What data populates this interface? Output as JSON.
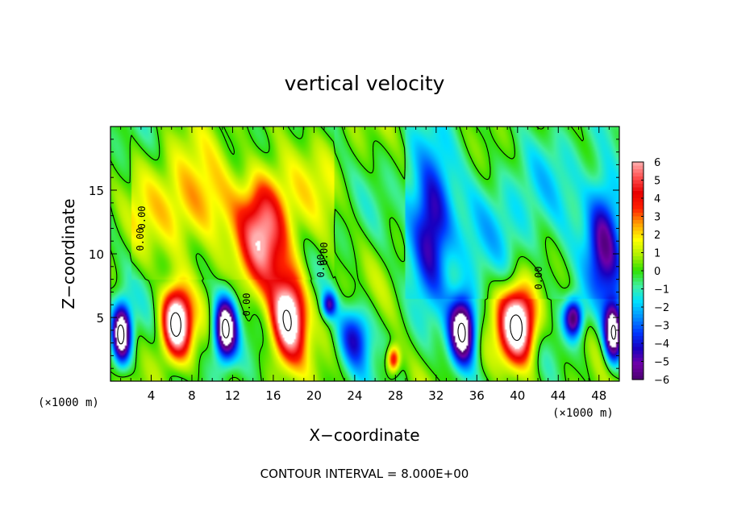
{
  "chart_data": {
    "type": "heatmap",
    "title": "vertical velocity",
    "xlabel": "X−coordinate",
    "ylabel": "Z−coordinate",
    "x_unit_left": "(×1000 m)",
    "x_unit_right": "(×1000 m)",
    "xlim": [
      0,
      50
    ],
    "ylim": [
      0,
      20
    ],
    "x_ticks": [
      "4",
      "8",
      "12",
      "16",
      "20",
      "24",
      "28",
      "32",
      "36",
      "40",
      "44",
      "48"
    ],
    "x_tick_values": [
      4,
      8,
      12,
      16,
      20,
      24,
      28,
      32,
      36,
      40,
      44,
      48
    ],
    "y_ticks": [
      "5",
      "10",
      "15"
    ],
    "y_tick_values": [
      5,
      10,
      15
    ],
    "colorbar": {
      "min": -6,
      "max": 6,
      "labels": [
        "6",
        "5",
        "4",
        "3",
        "2",
        "1",
        "0",
        "−1",
        "−2",
        "−3",
        "−4",
        "−5",
        "−6"
      ],
      "colors": [
        "#4b0070",
        "#7000a8",
        "#1800c0",
        "#0038ff",
        "#0090ff",
        "#00e0ff",
        "#40f0a0",
        "#30e000",
        "#b0f000",
        "#ffff00",
        "#ffa000",
        "#ff2000",
        "#e80000",
        "#ff5050",
        "#ffb0b0"
      ]
    },
    "contour_labels": [
      "0.00",
      "0.00",
      "0.00",
      "0.00",
      "0.00",
      "0.00"
    ],
    "contour_interval_text": "CONTOUR INTERVAL = 8.000E+00",
    "features": [
      {
        "kind": "updraft",
        "x": 6.5,
        "z": 4.6,
        "strength": 8.5,
        "sx": 1.4,
        "sz": 2.6
      },
      {
        "kind": "updraft",
        "x": 40.0,
        "z": 4.4,
        "strength": 8.8,
        "sx": 1.7,
        "sz": 2.9
      },
      {
        "kind": "updraft",
        "x": 17.5,
        "z": 5.0,
        "strength": 8.0,
        "sx": 1.7,
        "sz": 3.4
      },
      {
        "kind": "updraft",
        "x": 15.0,
        "z": 11.5,
        "strength": 5.0,
        "sx": 2.2,
        "sz": 4.5
      },
      {
        "kind": "updraft",
        "x": 27.8,
        "z": 1.7,
        "strength": 4.5,
        "sx": 0.6,
        "sz": 1.0
      },
      {
        "kind": "updraft",
        "x": 8.5,
        "z": 13.5,
        "strength": 1.8,
        "sx": 3.5,
        "sz": 3.5
      },
      {
        "kind": "downdraft",
        "x": 1.1,
        "z": 3.7,
        "strength": -8.5,
        "sx": 0.9,
        "sz": 2.2
      },
      {
        "kind": "downdraft",
        "x": 11.3,
        "z": 4.1,
        "strength": -8.5,
        "sx": 1.1,
        "sz": 2.4
      },
      {
        "kind": "downdraft",
        "x": 34.6,
        "z": 4.0,
        "strength": -8.5,
        "sx": 1.3,
        "sz": 2.7
      },
      {
        "kind": "downdraft",
        "x": 45.5,
        "z": 5.0,
        "strength": -6.0,
        "sx": 0.9,
        "sz": 1.5
      },
      {
        "kind": "downdraft",
        "x": 49.4,
        "z": 3.8,
        "strength": -8.0,
        "sx": 0.9,
        "sz": 2.3
      },
      {
        "kind": "downdraft",
        "x": 31.5,
        "z": 12.0,
        "strength": -4.5,
        "sx": 1.8,
        "sz": 5.0
      },
      {
        "kind": "downdraft",
        "x": 48.5,
        "z": 11.0,
        "strength": -4.0,
        "sx": 1.6,
        "sz": 5.0
      },
      {
        "kind": "downdraft",
        "x": 24.0,
        "z": 3.5,
        "strength": -4.0,
        "sx": 1.6,
        "sz": 2.5
      },
      {
        "kind": "downdraft",
        "x": 21.5,
        "z": 6.0,
        "strength": -4.0,
        "sx": 0.7,
        "sz": 1.0
      }
    ]
  }
}
